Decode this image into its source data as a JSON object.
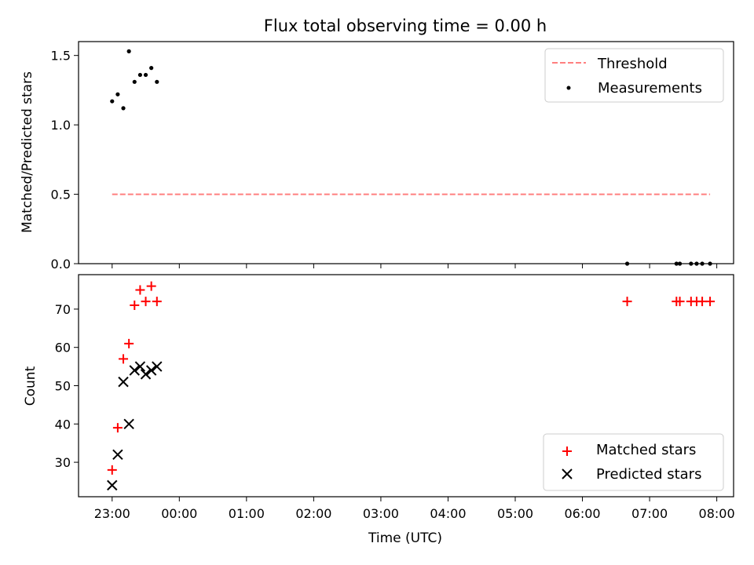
{
  "chart_data": [
    {
      "type": "scatter",
      "title": "Flux total observing time = 0.00 h",
      "ylabel": "Matched/Predicted stars",
      "xlabel": "",
      "ylim": [
        0,
        1.6
      ],
      "yticks": [
        "0.0",
        "0.5",
        "1.0",
        "1.5"
      ],
      "legend": "top-right",
      "threshold": {
        "name": "Threshold",
        "color": "#ff7f7f",
        "style": "dashed",
        "value": 0.5,
        "x_start": "23:00",
        "x_end": "07:54"
      },
      "series": [
        {
          "name": "Measurements",
          "color": "#000000",
          "marker": "dot",
          "points": [
            [
              "23:00",
              1.17
            ],
            [
              "23:05",
              1.22
            ],
            [
              "23:10",
              1.12
            ],
            [
              "23:15",
              1.53
            ],
            [
              "23:20",
              1.31
            ],
            [
              "23:25",
              1.36
            ],
            [
              "23:30",
              1.36
            ],
            [
              "23:35",
              1.41
            ],
            [
              "23:40",
              1.31
            ],
            [
              "06:40",
              0.0
            ],
            [
              "07:24",
              0.0
            ],
            [
              "07:27",
              0.0
            ],
            [
              "07:37",
              0.0
            ],
            [
              "07:42",
              0.0
            ],
            [
              "07:47",
              0.0
            ],
            [
              "07:54",
              0.0
            ]
          ]
        }
      ]
    },
    {
      "type": "scatter",
      "title": "",
      "ylabel": "Count",
      "xlabel": "Time (UTC)",
      "ylim": [
        21,
        79
      ],
      "yticks": [
        "30",
        "40",
        "50",
        "60",
        "70"
      ],
      "xticks": [
        "23:00",
        "00:00",
        "01:00",
        "02:00",
        "03:00",
        "04:00",
        "05:00",
        "06:00",
        "07:00",
        "08:00"
      ],
      "legend": "bottom-right",
      "series": [
        {
          "name": "Matched stars",
          "color": "#ff0000",
          "marker": "plus",
          "points": [
            [
              "23:00",
              28
            ],
            [
              "23:05",
              39
            ],
            [
              "23:10",
              57
            ],
            [
              "23:15",
              61
            ],
            [
              "23:20",
              71
            ],
            [
              "23:25",
              75
            ],
            [
              "23:30",
              72
            ],
            [
              "23:35",
              76
            ],
            [
              "23:40",
              72
            ],
            [
              "06:40",
              72
            ],
            [
              "07:24",
              72
            ],
            [
              "07:27",
              72
            ],
            [
              "07:37",
              72
            ],
            [
              "07:42",
              72
            ],
            [
              "07:47",
              72
            ],
            [
              "07:54",
              72
            ]
          ]
        },
        {
          "name": "Predicted stars",
          "color": "#000000",
          "marker": "x",
          "points": [
            [
              "23:00",
              24
            ],
            [
              "23:05",
              32
            ],
            [
              "23:10",
              51
            ],
            [
              "23:15",
              40
            ],
            [
              "23:20",
              54
            ],
            [
              "23:25",
              55
            ],
            [
              "23:30",
              53
            ],
            [
              "23:35",
              54
            ],
            [
              "23:40",
              55
            ]
          ]
        }
      ]
    }
  ]
}
